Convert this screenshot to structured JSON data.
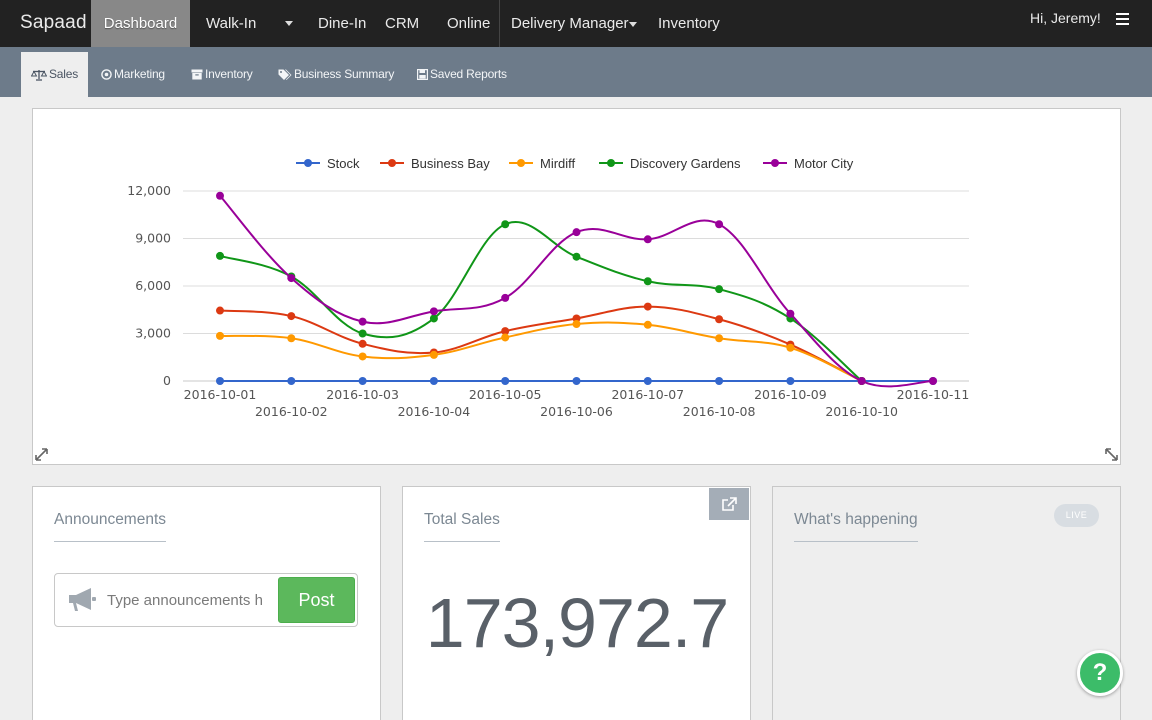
{
  "topnav": {
    "brand": "Sapaad",
    "items": [
      {
        "label": "Dashboard"
      },
      {
        "label": "Walk-In"
      },
      {
        "label": "Dine-In"
      },
      {
        "label": "CRM"
      },
      {
        "label": "Online"
      },
      {
        "label": "Delivery Manager"
      },
      {
        "label": "Inventory"
      }
    ],
    "greeting": "Hi, Jeremy!"
  },
  "subnav": {
    "items": [
      {
        "label": "Sales",
        "icon": "balance-scale-icon"
      },
      {
        "label": "Marketing",
        "icon": "bullseye-icon"
      },
      {
        "label": "Inventory",
        "icon": "archive-icon"
      },
      {
        "label": "Business Summary",
        "icon": "tags-icon"
      },
      {
        "label": "Saved Reports",
        "icon": "save-icon"
      }
    ]
  },
  "chart_data": {
    "type": "line",
    "categories": [
      "2016-10-01",
      "2016-10-02",
      "2016-10-03",
      "2016-10-04",
      "2016-10-05",
      "2016-10-06",
      "2016-10-07",
      "2016-10-08",
      "2016-10-09",
      "2016-10-10",
      "2016-10-11"
    ],
    "series": [
      {
        "name": "Stock",
        "color": "#3366cc",
        "values": [
          0,
          0,
          0,
          0,
          0,
          0,
          0,
          0,
          0,
          0,
          0
        ]
      },
      {
        "name": "Business Bay",
        "color": "#dc3912",
        "values": [
          4450,
          4100,
          2350,
          1800,
          3150,
          3950,
          4700,
          3900,
          2300,
          0,
          null
        ]
      },
      {
        "name": "Mirdiff",
        "color": "#ff9900",
        "values": [
          2850,
          2700,
          1550,
          1650,
          2750,
          3600,
          3550,
          2700,
          2100,
          0,
          null
        ]
      },
      {
        "name": "Discovery Gardens",
        "color": "#109618",
        "values": [
          7900,
          6600,
          3000,
          3950,
          9900,
          7850,
          6300,
          5800,
          3950,
          0,
          null
        ]
      },
      {
        "name": "Motor City",
        "color": "#990099",
        "values": [
          11700,
          6500,
          3750,
          4400,
          5250,
          9400,
          8950,
          9900,
          4250,
          0,
          0
        ]
      }
    ],
    "yticks": [
      "0",
      "3,000",
      "6,000",
      "9,000",
      "12,000"
    ],
    "ylim": [
      0,
      12000
    ],
    "legend": "top",
    "grid": true
  },
  "announcements": {
    "title": "Announcements",
    "placeholder": "Type announcements h",
    "post_label": "Post"
  },
  "total_sales": {
    "title": "Total Sales",
    "value": "173,972.7"
  },
  "whats_happening": {
    "title": "What's happening",
    "badge": "LIVE"
  },
  "help": {
    "label": "?"
  }
}
